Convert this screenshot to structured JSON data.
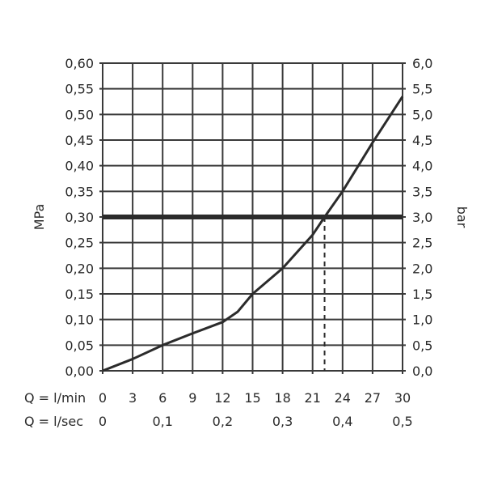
{
  "chart_data": {
    "type": "line",
    "title": "",
    "xlabel_primary": "Q = l/min",
    "xlabel_secondary": "Q = l/sec",
    "ylabel_left": "MPa",
    "ylabel_right": "bar",
    "xlim": [
      0,
      30
    ],
    "ylim": [
      0,
      0.6
    ],
    "ylim_right": [
      0,
      6
    ],
    "grid": true,
    "x_ticks": [
      "0",
      "3",
      "6",
      "9",
      "12",
      "15",
      "18",
      "21",
      "24",
      "27",
      "30"
    ],
    "x_ticks_secondary": [
      {
        "value": 0,
        "label": "0"
      },
      {
        "value": 6,
        "label": "0,1"
      },
      {
        "value": 12,
        "label": "0,2"
      },
      {
        "value": 18,
        "label": "0,3"
      },
      {
        "value": 24,
        "label": "0,4"
      },
      {
        "value": 30,
        "label": "0,5"
      }
    ],
    "y_ticks_left": [
      "0,00",
      "0,05",
      "0,10",
      "0,15",
      "0,20",
      "0,25",
      "0,30",
      "0,35",
      "0,40",
      "0,45",
      "0,50",
      "0,55",
      "0,60"
    ],
    "y_ticks_right": [
      "0,0",
      "0,5",
      "1,0",
      "1,5",
      "2,0",
      "2,5",
      "3,0",
      "3,5",
      "4,0",
      "4,5",
      "5,0",
      "5,5",
      "6,0"
    ],
    "series": [
      {
        "x": [
          0,
          3,
          6,
          9,
          12,
          13.5,
          15,
          18,
          21,
          22.2,
          24,
          27,
          30
        ],
        "y": [
          0,
          0.023,
          0.05,
          0.073,
          0.095,
          0.115,
          0.15,
          0.2,
          0.265,
          0.3,
          0.35,
          0.445,
          0.535
        ]
      }
    ],
    "reference_line": {
      "y": 0.3,
      "x_intersect": 22.2
    },
    "colors": {
      "line": "#2b2b2b",
      "grid": "#3a3a3a"
    }
  }
}
